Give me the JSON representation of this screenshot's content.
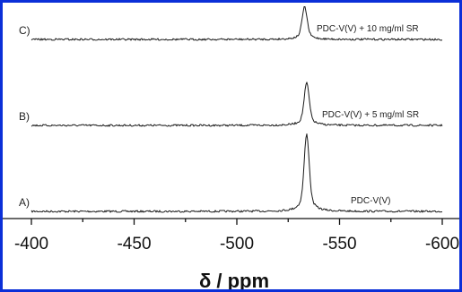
{
  "chart_data": {
    "type": "line",
    "xlabel": "δ / ppm",
    "xlim": [
      -400,
      -600
    ],
    "x_ticks": [
      -400,
      -450,
      -500,
      -550,
      -600
    ],
    "grid": false,
    "series": [
      {
        "name": "PDC-V(V)",
        "letter": "A)",
        "peak_x": -534,
        "peak_height": 1.0,
        "baseline_offset": 0
      },
      {
        "name": "PDC-V(V) + 5 mg/ml SR",
        "letter": "B)",
        "peak_x": -534,
        "peak_height": 0.55,
        "baseline_offset": 1
      },
      {
        "name": "PDC-V(V) + 10 mg/ml SR",
        "letter": "C)",
        "peak_x": -533,
        "peak_height": 0.42,
        "baseline_offset": 2
      }
    ]
  },
  "colors": {
    "border": "#0b2fd8",
    "line": "#1a1a1a"
  }
}
